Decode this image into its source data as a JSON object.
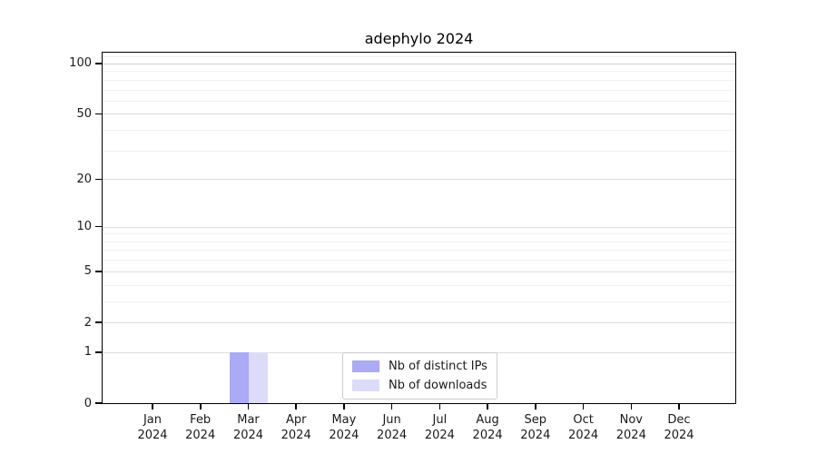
{
  "chart_data": {
    "type": "bar",
    "title": "adephylo 2024",
    "categories": [
      "Jan",
      "Feb",
      "Mar",
      "Apr",
      "May",
      "Jun",
      "Jul",
      "Aug",
      "Sep",
      "Oct",
      "Nov",
      "Dec"
    ],
    "year_label": "2024",
    "series": [
      {
        "name": "Nb of distinct IPs",
        "color": "#aaaaf5",
        "values": [
          0,
          0,
          1,
          0,
          0,
          0,
          0,
          0,
          0,
          0,
          0,
          0
        ]
      },
      {
        "name": "Nb of downloads",
        "color": "#dcdcf8",
        "values": [
          0,
          0,
          1,
          0,
          0,
          0,
          0,
          0,
          0,
          0,
          0,
          0
        ]
      }
    ],
    "y_axis": {
      "scale": "log1p",
      "tick_values": [
        0,
        1,
        2,
        5,
        10,
        20,
        50,
        100
      ],
      "minor_gridline_values": [
        3,
        4,
        6,
        7,
        8,
        9,
        30,
        40,
        60,
        70,
        80,
        90,
        110
      ],
      "ylim": [
        0,
        116
      ],
      "grid": "horizontal"
    },
    "legend": {
      "position": "bottom-center"
    }
  },
  "colors": {
    "axis": "#000000",
    "major_grid": "#dcdcdc",
    "minor_grid": "#f0f0f0",
    "grid_100": "#d2d2d2",
    "legend_border": "#cccccc",
    "text": "#1a1a1a"
  }
}
